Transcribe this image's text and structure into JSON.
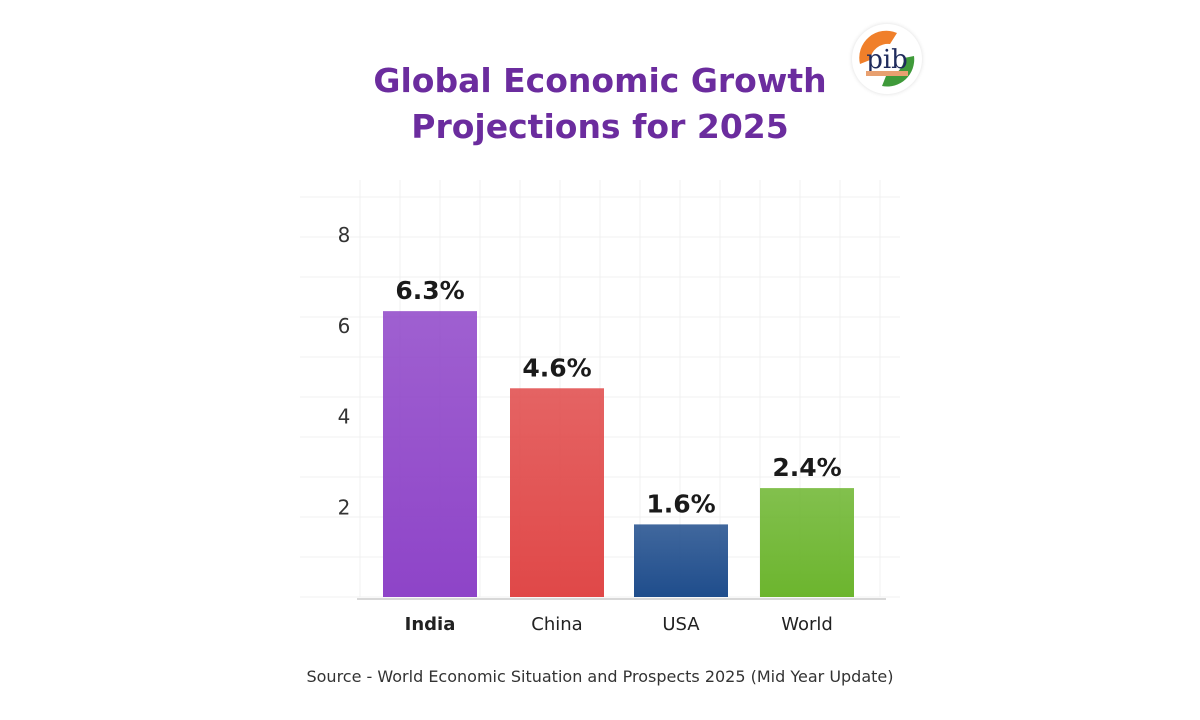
{
  "chart_data": {
    "type": "bar",
    "title": "Global Economic Growth Projections for 2025",
    "title_lines": [
      "Global Economic Growth",
      "Projections for 2025"
    ],
    "categories": [
      "India",
      "China",
      "USA",
      "World"
    ],
    "values": [
      6.3,
      4.6,
      1.6,
      2.4
    ],
    "data_labels": [
      "6.3%",
      "4.6%",
      "1.6%",
      "2.4%"
    ],
    "colors": [
      "#8e44c8",
      "#e04848",
      "#1f4d8c",
      "#6cb52e"
    ],
    "yticks": [
      2,
      4,
      6,
      8
    ],
    "ylim": [
      0,
      8
    ],
    "xlabel": "",
    "ylabel": "",
    "grid": true,
    "highlighted_category": "India"
  },
  "source": "Source - World Economic Situation and Prospects 2025 (Mid Year Update)",
  "logo": {
    "text": "pib",
    "colors": [
      "#f07f2a",
      "#3f9a3a",
      "#1f2b5c"
    ]
  },
  "title_color": "#6b2c9e"
}
